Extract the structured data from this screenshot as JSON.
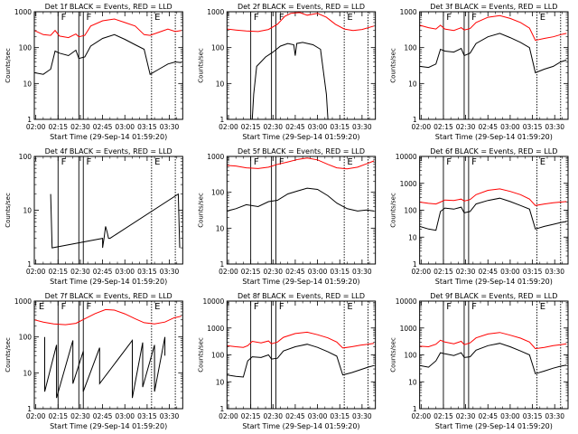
{
  "figure": {
    "series_colors": {
      "events": "#000000",
      "lld": "#ff0000"
    },
    "x_tick_labels": [
      "02:00",
      "02:15",
      "02:30",
      "02:45",
      "03:00",
      "03:15",
      "03:30"
    ]
  },
  "chart_data": [
    {
      "type": "line",
      "title": "Det 1f BLACK = Events, RED = LLD",
      "xlabel": "Start Time (29-Sep-14 01:59:20)",
      "ylabel": "Counts/sec",
      "yscale": "log",
      "ylim": [
        1,
        1000
      ],
      "y_tick_labels": [
        "1",
        "10",
        "100",
        "1000"
      ],
      "x_tick_labels": [
        "02:00",
        "02:15",
        "02:30",
        "02:45",
        "03:00",
        "03:15",
        "03:30"
      ],
      "grid": false,
      "markers": [
        "F",
        "F",
        "E"
      ],
      "series": [
        {
          "role": "LLD",
          "color": "#ff0000",
          "x": [
            "01:59",
            "02:05",
            "02:10",
            "02:13",
            "02:16",
            "02:22",
            "02:27",
            "02:29",
            "02:33",
            "02:37",
            "02:45",
            "02:53",
            "03:00",
            "03:07",
            "03:13",
            "03:17",
            "03:23",
            "03:29",
            "03:34",
            "03:38"
          ],
          "y": [
            300,
            230,
            220,
            300,
            210,
            190,
            240,
            200,
            220,
            400,
            560,
            630,
            500,
            400,
            230,
            220,
            270,
            330,
            280,
            300
          ]
        },
        {
          "role": "Events",
          "color": "#000000",
          "x": [
            "01:59",
            "02:05",
            "02:10",
            "02:13",
            "02:16",
            "02:22",
            "02:27",
            "02:29",
            "02:33",
            "02:37",
            "02:45",
            "02:53",
            "03:00",
            "03:07",
            "03:13",
            "03:17",
            "03:23",
            "03:29",
            "03:34",
            "03:38"
          ],
          "y": [
            20,
            18,
            25,
            80,
            70,
            60,
            85,
            50,
            55,
            110,
            180,
            230,
            170,
            120,
            90,
            18,
            25,
            35,
            40,
            38
          ]
        }
      ]
    },
    {
      "type": "line",
      "title": "Det 2f BLACK = Events, RED = LLD",
      "xlabel": "Start Time (29-Sep-14 01:59:20)",
      "ylabel": "Counts/sec",
      "yscale": "log",
      "ylim": [
        1,
        1000
      ],
      "y_tick_labels": [
        "1",
        "10",
        "100",
        "1000"
      ],
      "x_tick_labels": [
        "02:00",
        "02:15",
        "02:30",
        "02:45",
        "03:00",
        "03:15",
        "03:30"
      ],
      "grid": false,
      "markers": [
        "F",
        "F",
        "E"
      ],
      "series": [
        {
          "role": "LLD",
          "color": "#ff0000",
          "x": [
            "01:59",
            "02:05",
            "02:12",
            "02:20",
            "02:27",
            "02:33",
            "02:38",
            "02:42",
            "02:48",
            "02:53",
            "03:00",
            "03:06",
            "03:12",
            "03:18",
            "03:24",
            "03:30",
            "03:38"
          ],
          "y": [
            330,
            310,
            290,
            280,
            320,
            450,
            750,
            900,
            950,
            800,
            900,
            700,
            450,
            330,
            300,
            320,
            400
          ]
        },
        {
          "role": "Events",
          "color": "#000000",
          "x": [
            "02:16",
            "02:17",
            "02:19",
            "02:25",
            "02:30",
            "02:35",
            "02:40",
            "02:44",
            "02:45",
            "02:46",
            "02:50",
            "02:57",
            "03:02",
            "03:06",
            "03:07"
          ],
          "y": [
            1,
            5,
            30,
            55,
            75,
            110,
            130,
            120,
            60,
            130,
            140,
            120,
            90,
            5,
            1
          ]
        }
      ]
    },
    {
      "type": "line",
      "title": "Det 3f BLACK = Events, RED = LLD",
      "xlabel": "Start Time (29-Sep-14 01:59:20)",
      "ylabel": "Counts/sec",
      "yscale": "log",
      "ylim": [
        1,
        1000
      ],
      "y_tick_labels": [
        "1",
        "10",
        "100",
        "1000"
      ],
      "x_tick_labels": [
        "02:00",
        "02:15",
        "02:30",
        "02:45",
        "03:00",
        "03:15",
        "03:30"
      ],
      "grid": false,
      "markers": [
        "F",
        "F",
        "E"
      ],
      "series": [
        {
          "role": "LLD",
          "color": "#ff0000",
          "x": [
            "01:59",
            "02:05",
            "02:10",
            "02:13",
            "02:16",
            "02:22",
            "02:27",
            "02:29",
            "02:33",
            "02:37",
            "02:45",
            "02:53",
            "03:00",
            "03:07",
            "03:13",
            "03:17",
            "03:23",
            "03:29",
            "03:34",
            "03:38"
          ],
          "y": [
            420,
            360,
            330,
            420,
            330,
            300,
            360,
            310,
            340,
            500,
            700,
            780,
            650,
            500,
            350,
            160,
            180,
            200,
            230,
            250
          ]
        },
        {
          "role": "Events",
          "color": "#000000",
          "x": [
            "01:59",
            "02:05",
            "02:10",
            "02:13",
            "02:16",
            "02:22",
            "02:27",
            "02:29",
            "02:33",
            "02:37",
            "02:45",
            "02:53",
            "03:00",
            "03:07",
            "03:13",
            "03:17",
            "03:23",
            "03:29",
            "03:34",
            "03:38"
          ],
          "y": [
            30,
            28,
            35,
            90,
            80,
            75,
            95,
            60,
            70,
            130,
            200,
            250,
            190,
            140,
            100,
            20,
            25,
            30,
            40,
            45
          ]
        }
      ]
    },
    {
      "type": "line",
      "title": "Det 4f BLACK = Events, RED = LLD",
      "xlabel": "Start Time (29-Sep-14 01:59:20)",
      "ylabel": "Counts/sec",
      "yscale": "log",
      "ylim": [
        1,
        100
      ],
      "y_tick_labels": [
        "1",
        "10",
        "100"
      ],
      "x_tick_labels": [
        "02:00",
        "02:15",
        "02:30",
        "02:45",
        "03:00",
        "03:15",
        "03:30"
      ],
      "grid": false,
      "markers": [
        "F",
        "F",
        "E"
      ],
      "series": [
        {
          "role": "Events",
          "color": "#000000",
          "x": [
            "02:10",
            "02:11",
            "02:45",
            "02:45",
            "02:46",
            "02:47",
            "02:48",
            "02:49",
            "02:50",
            "03:36",
            "03:37"
          ],
          "y": [
            20,
            2,
            3,
            2,
            3,
            5,
            4,
            3,
            3,
            20,
            2
          ]
        }
      ]
    },
    {
      "type": "line",
      "title": "Det 5f BLACK = Events, RED = LLD",
      "xlabel": "Start Time (29-Sep-14 01:59:20)",
      "ylabel": "Counts/sec",
      "yscale": "log",
      "ylim": [
        1,
        1000
      ],
      "y_tick_labels": [
        "1",
        "10",
        "100",
        "1000"
      ],
      "x_tick_labels": [
        "02:00",
        "02:15",
        "02:30",
        "02:45",
        "03:00",
        "03:15",
        "03:30"
      ],
      "grid": false,
      "markers": [
        "F",
        "F",
        "E"
      ],
      "series": [
        {
          "role": "LLD",
          "color": "#ff0000",
          "x": [
            "01:59",
            "02:05",
            "02:12",
            "02:20",
            "02:27",
            "02:33",
            "02:40",
            "02:47",
            "02:53",
            "03:00",
            "03:07",
            "03:13",
            "03:20",
            "03:27",
            "03:33",
            "03:38"
          ],
          "y": [
            560,
            540,
            480,
            460,
            500,
            600,
            700,
            830,
            900,
            800,
            600,
            480,
            450,
            500,
            620,
            750
          ]
        },
        {
          "role": "Events",
          "color": "#000000",
          "x": [
            "01:59",
            "02:05",
            "02:12",
            "02:20",
            "02:27",
            "02:33",
            "02:40",
            "02:47",
            "02:53",
            "03:00",
            "03:07",
            "03:13",
            "03:20",
            "03:27",
            "03:33",
            "03:38"
          ],
          "y": [
            30,
            35,
            45,
            40,
            55,
            60,
            90,
            110,
            130,
            120,
            80,
            50,
            35,
            30,
            32,
            30
          ]
        }
      ]
    },
    {
      "type": "line",
      "title": "Det 6f BLACK = Events, RED = LLD",
      "xlabel": "Start Time (29-Sep-14 01:59:20)",
      "ylabel": "Counts/sec",
      "yscale": "log",
      "ylim": [
        1,
        10000
      ],
      "y_tick_labels": [
        "1",
        "10",
        "100",
        "1000",
        "10000"
      ],
      "x_tick_labels": [
        "02:00",
        "02:15",
        "02:30",
        "02:45",
        "03:00",
        "03:15",
        "03:30"
      ],
      "grid": false,
      "markers": [
        "F",
        "F",
        "E"
      ],
      "series": [
        {
          "role": "LLD",
          "color": "#ff0000",
          "x": [
            "01:59",
            "02:05",
            "02:10",
            "02:13",
            "02:16",
            "02:22",
            "02:27",
            "02:29",
            "02:33",
            "02:37",
            "02:45",
            "02:53",
            "03:00",
            "03:07",
            "03:13",
            "03:17",
            "03:23",
            "03:29",
            "03:34",
            "03:38"
          ],
          "y": [
            200,
            180,
            170,
            200,
            240,
            230,
            260,
            220,
            250,
            380,
            550,
            620,
            500,
            380,
            260,
            150,
            170,
            190,
            200,
            210
          ]
        },
        {
          "role": "Events",
          "color": "#000000",
          "x": [
            "01:59",
            "02:05",
            "02:10",
            "02:13",
            "02:16",
            "02:22",
            "02:27",
            "02:29",
            "02:33",
            "02:37",
            "02:45",
            "02:53",
            "03:00",
            "03:07",
            "03:13",
            "03:17",
            "03:23",
            "03:29",
            "03:34",
            "03:38"
          ],
          "y": [
            25,
            20,
            18,
            90,
            120,
            110,
            130,
            80,
            90,
            170,
            230,
            280,
            210,
            150,
            110,
            20,
            25,
            30,
            35,
            38
          ]
        }
      ]
    },
    {
      "type": "line",
      "title": "Det 7f BLACK = Events, RED = LLD",
      "xlabel": "Start Time (29-Sep-14 01:59:20)",
      "ylabel": "Counts/sec",
      "yscale": "log",
      "ylim": [
        1,
        1000
      ],
      "y_tick_labels": [
        "1",
        "10",
        "100",
        "1000"
      ],
      "x_tick_labels": [
        "02:00",
        "02:15",
        "02:30",
        "02:45",
        "03:00",
        "03:15",
        "03:30"
      ],
      "grid": false,
      "markers": [
        "E",
        "F",
        "F",
        "E"
      ],
      "series": [
        {
          "role": "LLD",
          "color": "#ff0000",
          "x": [
            "01:59",
            "02:05",
            "02:12",
            "02:20",
            "02:27",
            "02:33",
            "02:40",
            "02:47",
            "02:53",
            "03:00",
            "03:07",
            "03:13",
            "03:20",
            "03:27",
            "03:33",
            "03:38"
          ],
          "y": [
            300,
            260,
            230,
            220,
            240,
            320,
            450,
            580,
            560,
            440,
            320,
            250,
            230,
            260,
            340,
            380
          ]
        },
        {
          "role": "Events",
          "color": "#000000",
          "x": [
            "02:06",
            "02:06",
            "02:14",
            "02:14",
            "02:25",
            "02:25",
            "02:32",
            "02:32",
            "02:43",
            "02:43",
            "03:05",
            "03:05",
            "03:12",
            "03:12",
            "03:20",
            "03:20",
            "03:27",
            "03:27"
          ],
          "y": [
            100,
            3,
            60,
            2,
            80,
            5,
            40,
            3,
            50,
            5,
            80,
            2,
            70,
            4,
            60,
            3,
            100,
            30
          ]
        }
      ]
    },
    {
      "type": "line",
      "title": "Det 8f BLACK = Events, RED = LLD",
      "xlabel": "Start Time (29-Sep-14 01:59:20)",
      "ylabel": "Counts/sec",
      "yscale": "log",
      "ylim": [
        1,
        10000
      ],
      "y_tick_labels": [
        "1",
        "10",
        "100",
        "1000",
        "10000"
      ],
      "x_tick_labels": [
        "02:00",
        "02:15",
        "02:30",
        "02:45",
        "03:00",
        "03:15",
        "03:30"
      ],
      "grid": false,
      "markers": [
        "F",
        "F",
        "E"
      ],
      "series": [
        {
          "role": "LLD",
          "color": "#ff0000",
          "x": [
            "01:59",
            "02:05",
            "02:10",
            "02:13",
            "02:16",
            "02:22",
            "02:27",
            "02:29",
            "02:33",
            "02:37",
            "02:45",
            "02:53",
            "03:00",
            "03:07",
            "03:13",
            "03:17",
            "03:23",
            "03:29",
            "03:34",
            "03:38"
          ],
          "y": [
            220,
            200,
            190,
            220,
            320,
            280,
            330,
            260,
            300,
            450,
            620,
            700,
            560,
            430,
            300,
            180,
            200,
            230,
            250,
            270
          ]
        },
        {
          "role": "Events",
          "color": "#000000",
          "x": [
            "01:59",
            "02:05",
            "02:10",
            "02:13",
            "02:16",
            "02:22",
            "02:27",
            "02:29",
            "02:33",
            "02:37",
            "02:45",
            "02:53",
            "03:00",
            "03:07",
            "03:13",
            "03:17",
            "03:23",
            "03:29",
            "03:34",
            "03:38"
          ],
          "y": [
            18,
            16,
            15,
            60,
            85,
            80,
            100,
            70,
            75,
            140,
            200,
            250,
            190,
            130,
            90,
            18,
            22,
            28,
            35,
            40
          ]
        }
      ]
    },
    {
      "type": "line",
      "title": "Det 9f BLACK = Events, RED = LLD",
      "xlabel": "Start Time (29-Sep-14 01:59:20)",
      "ylabel": "Counts/sec",
      "yscale": "log",
      "ylim": [
        1,
        10000
      ],
      "y_tick_labels": [
        "1",
        "10",
        "100",
        "1000",
        "10000"
      ],
      "x_tick_labels": [
        "02:00",
        "02:15",
        "02:30",
        "02:45",
        "03:00",
        "03:15",
        "03:30"
      ],
      "grid": false,
      "markers": [
        "F",
        "F",
        "E"
      ],
      "series": [
        {
          "role": "LLD",
          "color": "#ff0000",
          "x": [
            "01:59",
            "02:05",
            "02:10",
            "02:13",
            "02:16",
            "02:22",
            "02:27",
            "02:29",
            "02:33",
            "02:37",
            "02:45",
            "02:53",
            "03:00",
            "03:07",
            "03:13",
            "03:17",
            "03:23",
            "03:29",
            "03:34",
            "03:38"
          ],
          "y": [
            210,
            200,
            250,
            350,
            300,
            260,
            320,
            240,
            280,
            430,
            600,
            680,
            540,
            420,
            300,
            170,
            190,
            220,
            240,
            260
          ]
        },
        {
          "role": "Events",
          "color": "#000000",
          "x": [
            "01:59",
            "02:05",
            "02:10",
            "02:13",
            "02:16",
            "02:22",
            "02:27",
            "02:29",
            "02:33",
            "02:37",
            "02:45",
            "02:53",
            "03:00",
            "03:07",
            "03:13",
            "03:17",
            "03:23",
            "03:29",
            "03:34",
            "03:38"
          ],
          "y": [
            40,
            35,
            60,
            120,
            110,
            95,
            120,
            80,
            85,
            150,
            220,
            270,
            200,
            140,
            100,
            20,
            25,
            32,
            38,
            42
          ]
        }
      ]
    }
  ]
}
